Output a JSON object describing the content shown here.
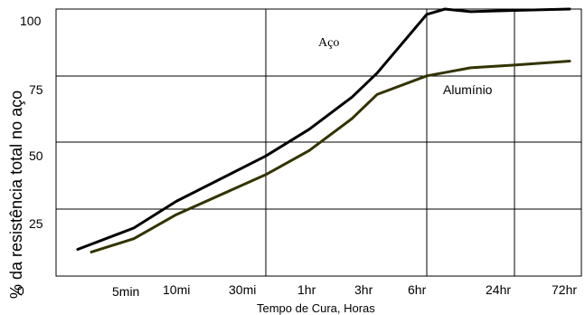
{
  "chart_data": {
    "type": "line",
    "xlabel": "Tempo de Cura, Horas",
    "ylabel": "% da resistência total no aço",
    "x_tick_labels": [
      "5min",
      "10mi",
      "30mi",
      "1hr",
      "3hr",
      "6hr",
      "24hr",
      "72hr"
    ],
    "y_tick_labels": [
      "0",
      "25",
      "50",
      "75",
      "100"
    ],
    "ylim": [
      0,
      100
    ],
    "grid": true,
    "series": [
      {
        "name": "Aço",
        "color": "#000000",
        "points": [
          [
            "2min",
            10
          ],
          [
            "5min",
            18
          ],
          [
            "10min",
            28
          ],
          [
            "30min",
            45
          ],
          [
            "1hr",
            55
          ],
          [
            "2hr",
            67
          ],
          [
            "3hr",
            76
          ],
          [
            "6hr",
            98
          ],
          [
            "8hr",
            100
          ],
          [
            "12hr",
            99
          ],
          [
            "24hr",
            99.5
          ],
          [
            "72hr",
            100
          ]
        ]
      },
      {
        "name": "Alumínio",
        "color": "#333300",
        "points": [
          [
            "2.5min",
            9
          ],
          [
            "5min",
            14
          ],
          [
            "10min",
            23
          ],
          [
            "30min",
            38
          ],
          [
            "1hr",
            47
          ],
          [
            "2hr",
            59
          ],
          [
            "3hr",
            68
          ],
          [
            "6hr",
            75
          ],
          [
            "12hr",
            78
          ],
          [
            "24hr",
            79
          ],
          [
            "72hr",
            80.5
          ]
        ]
      }
    ]
  }
}
